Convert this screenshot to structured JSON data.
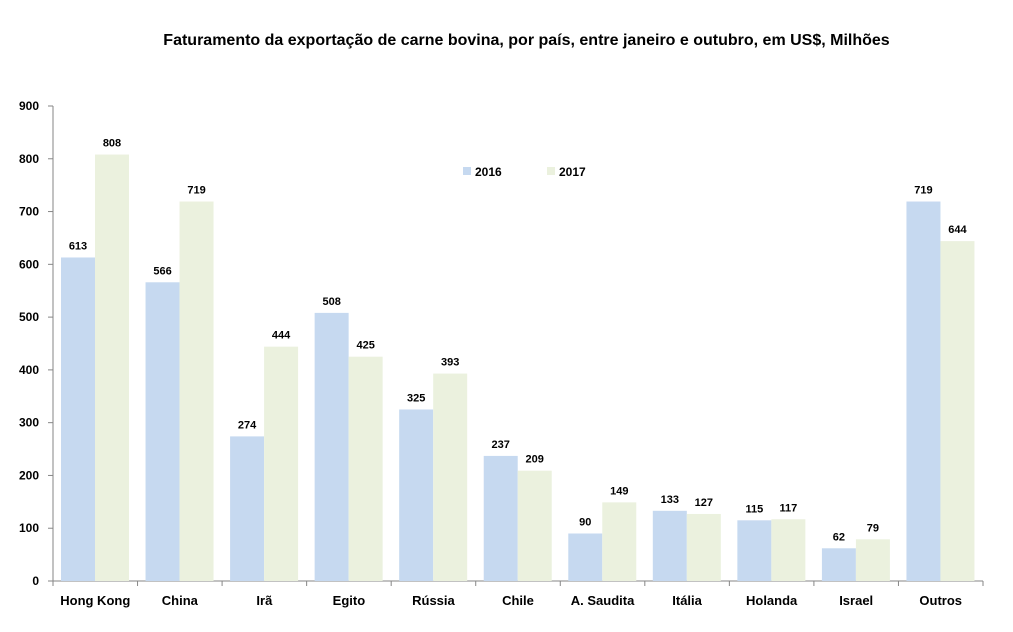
{
  "chart_data": {
    "type": "bar",
    "title": "Faturamento da exportação de carne bovina, por país, entre janeiro e outubro, em US$, Milhões",
    "xlabel": "",
    "ylabel": "",
    "categories": [
      "Hong Kong",
      "China",
      "Irã",
      "Egito",
      "Rússia",
      "Chile",
      "A. Saudita",
      "Itália",
      "Holanda",
      "Israel",
      "Outros"
    ],
    "series": [
      {
        "name": "2016",
        "color": "#c6d9f0",
        "values": [
          613,
          566,
          274,
          508,
          325,
          237,
          90,
          133,
          115,
          62,
          719
        ]
      },
      {
        "name": "2017",
        "color": "#ebf1de",
        "values": [
          808,
          719,
          444,
          425,
          393,
          209,
          149,
          127,
          117,
          79,
          644
        ]
      }
    ],
    "ylim": [
      0,
      900
    ],
    "yticks": [
      0,
      100,
      200,
      300,
      400,
      500,
      600,
      700,
      800,
      900
    ],
    "grid": false,
    "legend_position": "top-center",
    "data_labels": true
  }
}
